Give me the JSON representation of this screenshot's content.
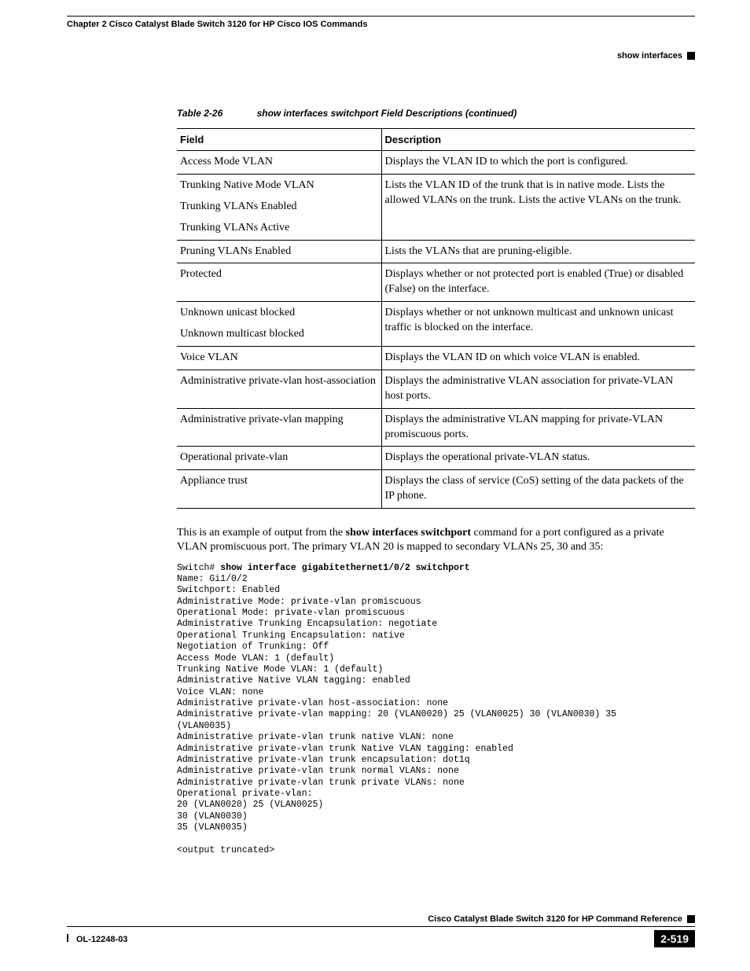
{
  "header": {
    "chapter": "Chapter 2  Cisco Catalyst Blade Switch 3120 for HP Cisco IOS Commands",
    "section": "show interfaces"
  },
  "table": {
    "caption_num": "Table 2-26",
    "caption_text": "show interfaces switchport Field Descriptions (continued)",
    "columns": [
      "Field",
      "Description"
    ],
    "rows": [
      {
        "field": [
          "Access Mode VLAN"
        ],
        "desc": "Displays the VLAN ID to which the port is configured."
      },
      {
        "field": [
          "Trunking Native Mode VLAN",
          "Trunking VLANs Enabled",
          "Trunking VLANs Active"
        ],
        "desc": "Lists the VLAN ID of the trunk that is in native mode. Lists the allowed VLANs on the trunk. Lists the active VLANs on the trunk."
      },
      {
        "field": [
          "Pruning VLANs Enabled"
        ],
        "desc": "Lists the VLANs that are pruning-eligible."
      },
      {
        "field": [
          "Protected"
        ],
        "desc": "Displays whether or not protected port is enabled (True) or disabled (False) on the interface."
      },
      {
        "field": [
          "Unknown unicast blocked",
          "Unknown multicast blocked"
        ],
        "desc": "Displays whether or not unknown multicast and unknown unicast traffic is blocked on the interface."
      },
      {
        "field": [
          "Voice VLAN"
        ],
        "desc": "Displays the VLAN ID on which voice VLAN is enabled."
      },
      {
        "field": [
          "Administrative private-vlan host-association"
        ],
        "desc": "Displays the administrative VLAN association for private-VLAN host ports."
      },
      {
        "field": [
          "Administrative private-vlan mapping"
        ],
        "desc": "Displays the administrative VLAN mapping for private-VLAN promiscuous ports."
      },
      {
        "field": [
          "Operational private-vlan"
        ],
        "desc": "Displays the operational private-VLAN status."
      },
      {
        "field": [
          "Appliance trust"
        ],
        "desc": "Displays the class of service (CoS) setting of the data packets of the IP phone."
      }
    ]
  },
  "para": {
    "pre": "This is an example of output from the ",
    "bold": "show interfaces switchport",
    "post": " command for a port configured as a private VLAN promiscuous port. The primary VLAN 20 is mapped to secondary VLANs 25, 30 and 35:"
  },
  "cli": {
    "prompt": "Switch# ",
    "cmd": "show interface gigabitethernet1/0/2 switchport",
    "lines": [
      "Name: Gi1/0/2",
      "Switchport: Enabled",
      "Administrative Mode: private-vlan promiscuous",
      "Operational Mode: private-vlan promiscuous",
      "Administrative Trunking Encapsulation: negotiate",
      "Operational Trunking Encapsulation: native",
      "Negotiation of Trunking: Off",
      "Access Mode VLAN: 1 (default)",
      "Trunking Native Mode VLAN: 1 (default)",
      "Administrative Native VLAN tagging: enabled",
      "Voice VLAN: none",
      "Administrative private-vlan host-association: none ",
      "Administrative private-vlan mapping: 20 (VLAN0020) 25 (VLAN0025) 30 (VLAN0030) 35 ",
      "(VLAN0035) ",
      "Administrative private-vlan trunk native VLAN: none",
      "Administrative private-vlan trunk Native VLAN tagging: enabled",
      "Administrative private-vlan trunk encapsulation: dot1q",
      "Administrative private-vlan trunk normal VLANs: none",
      "Administrative private-vlan trunk private VLANs: none",
      "Operational private-vlan: ",
      "20 (VLAN0020) 25 (VLAN0025) ",
      "30 (VLAN0030) ",
      "35 (VLAN0035) ",
      "",
      "<output truncated>"
    ]
  },
  "footer": {
    "title": "Cisco Catalyst Blade Switch 3120 for HP Command Reference",
    "doc_id": "OL-12248-03",
    "page": "2-519"
  }
}
